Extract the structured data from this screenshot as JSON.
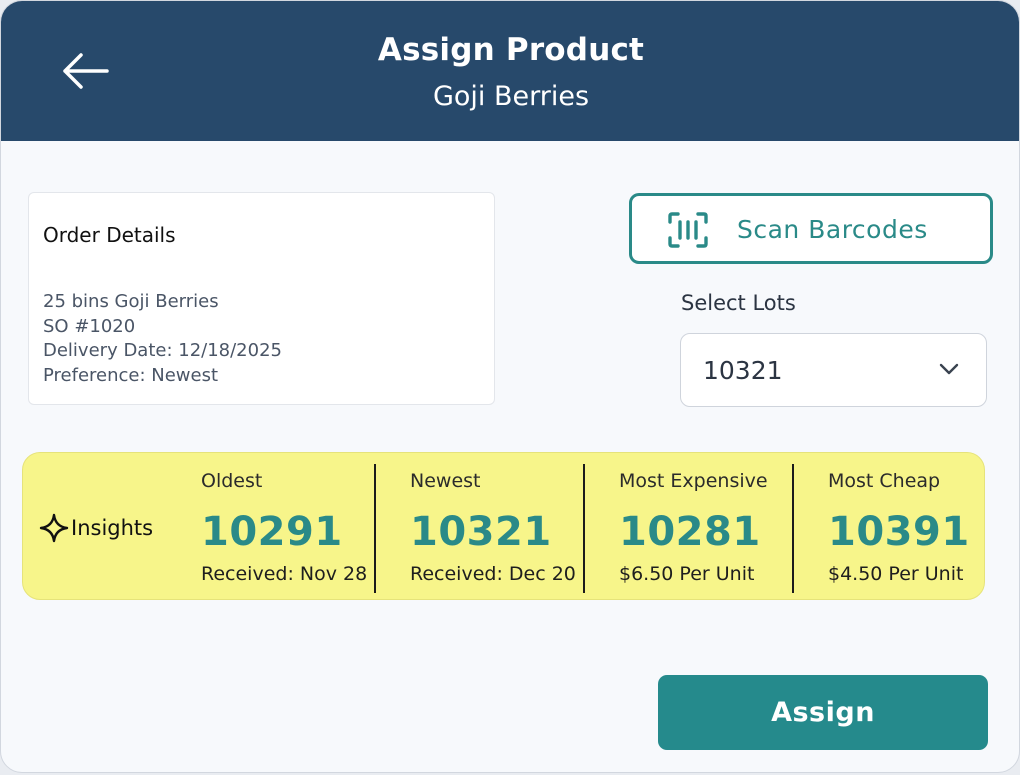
{
  "header": {
    "title": "Assign Product",
    "subtitle": "Goji Berries",
    "back_icon": "arrow-left-icon"
  },
  "order_details": {
    "title": "Order Details",
    "lines": [
      "25 bins Goji Berries",
      "SO #1020",
      "Delivery Date: 12/18/2025",
      "Preference: Newest"
    ]
  },
  "scan": {
    "label": "Scan Barcodes",
    "icon": "barcode-scan-icon"
  },
  "lots": {
    "label": "Select Lots",
    "selected": "10321",
    "icon": "chevron-down-icon"
  },
  "insights": {
    "title": "Insights",
    "icon": "sparkle-icon",
    "items": [
      {
        "label": "Oldest",
        "value": "10291",
        "detail": "Received: Nov 28"
      },
      {
        "label": "Newest",
        "value": "10321",
        "detail": "Received: Dec 20"
      },
      {
        "label": "Most Expensive",
        "value": "10281",
        "detail": "$6.50 Per Unit"
      },
      {
        "label": "Most Cheap",
        "value": "10391",
        "detail": "$4.50 Per Unit"
      }
    ]
  },
  "actions": {
    "assign_label": "Assign"
  },
  "colors": {
    "header_bg": "#27496b",
    "accent_teal": "#2a8a88",
    "insights_bg": "#f7f58a",
    "assign_bg": "#258a8c"
  }
}
